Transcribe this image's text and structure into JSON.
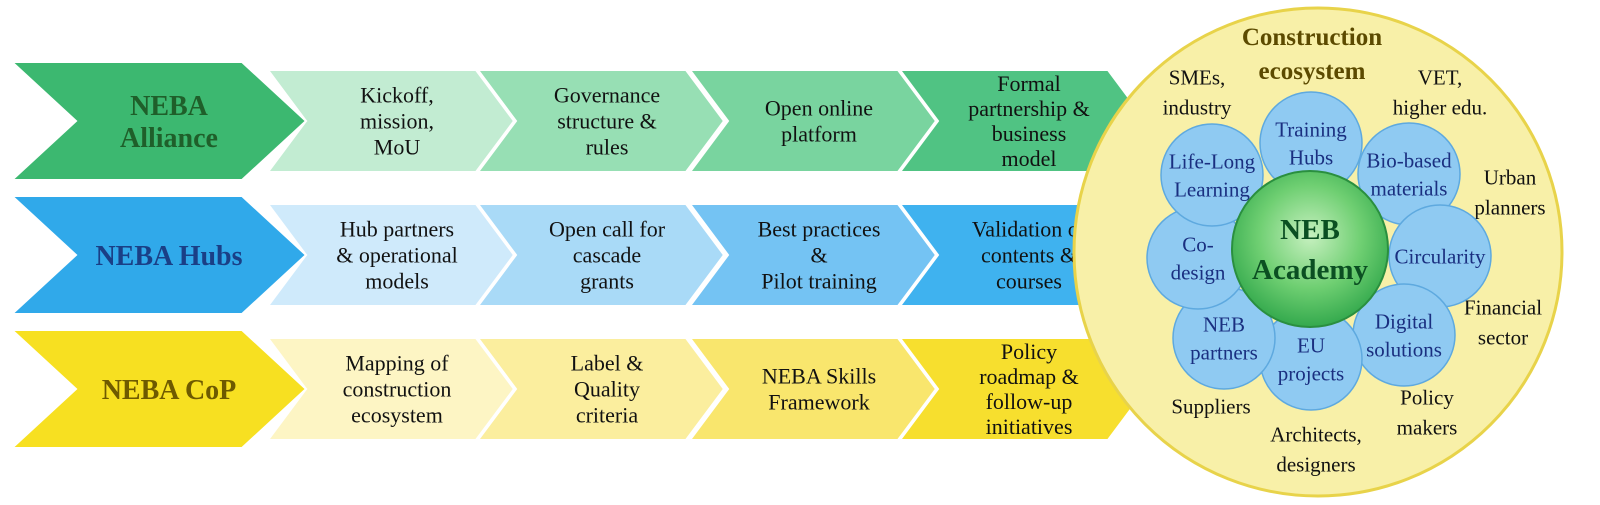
{
  "rows": [
    {
      "id": "alliance",
      "head": [
        "NEBA",
        "Alliance"
      ],
      "colors": {
        "head": "#3cb870",
        "head_text": "#1f5f2a",
        "steps": [
          "#c2ecd2",
          "#97dfb4",
          "#79d49f",
          "#50c383"
        ]
      },
      "steps": [
        [
          "Kickoff,",
          "mission,",
          "MoU"
        ],
        [
          "Governance",
          "structure &",
          "rules"
        ],
        [
          "Open online",
          "platform"
        ],
        [
          "Formal",
          "partnership &",
          "business",
          "model"
        ]
      ]
    },
    {
      "id": "hubs",
      "head": [
        "NEBA Hubs"
      ],
      "colors": {
        "head": "#30a9ea",
        "head_text": "#1a3f86",
        "steps": [
          "#cfeafb",
          "#a9daf7",
          "#74c3f3",
          "#3fb2ef"
        ]
      },
      "steps": [
        [
          "Hub partners",
          "& operational",
          "models"
        ],
        [
          "Open call for",
          "cascade",
          "grants"
        ],
        [
          "Best practices",
          "&",
          "Pilot training"
        ],
        [
          "Validation of",
          "contents &",
          "courses"
        ]
      ]
    },
    {
      "id": "cop",
      "head": [
        "NEBA CoP"
      ],
      "colors": {
        "head": "#f7e021",
        "head_text": "#6e5a00",
        "steps": [
          "#fdf5c4",
          "#fbee9e",
          "#f9e66d",
          "#f7df2e"
        ]
      },
      "steps": [
        [
          "Mapping of",
          "construction",
          "ecosystem"
        ],
        [
          "Label &",
          "Quality",
          "criteria"
        ],
        [
          "NEBA Skills",
          "Framework"
        ],
        [
          "Policy",
          "roadmap &",
          "follow-up",
          "initiatives"
        ]
      ]
    }
  ],
  "ecosystem": {
    "title": [
      "Construction",
      "ecosystem"
    ],
    "outer_labels": [
      [
        "SMEs,",
        "industry"
      ],
      [
        "VET,",
        "higher edu."
      ],
      [
        "Urban",
        "planners"
      ],
      [
        "Financial",
        "sector"
      ],
      [
        "Policy",
        "makers"
      ],
      [
        "Architects,",
        "designers"
      ],
      [
        "Suppliers"
      ]
    ],
    "petals": [
      [
        "Training",
        "Hubs"
      ],
      [
        "Bio-based",
        "materials"
      ],
      [
        "Circularity"
      ],
      [
        "Digital",
        "solutions"
      ],
      [
        "EU",
        "projects"
      ],
      [
        "NEB",
        "partners"
      ],
      [
        "Co-",
        "design"
      ],
      [
        "Life-Long",
        "Learning"
      ]
    ],
    "core": [
      "NEB",
      "Academy"
    ],
    "colors": {
      "circle": "#f8f0a8",
      "circle_stroke": "#e8d34a",
      "petal": "#8fcaf2",
      "petal_stroke": "#5ea9df",
      "core": "#3cb44f",
      "core_light": "#b8ecb0"
    }
  }
}
